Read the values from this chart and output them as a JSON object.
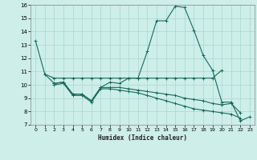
{
  "xlabel": "Humidex (Indice chaleur)",
  "xlim": [
    -0.5,
    23.5
  ],
  "ylim": [
    7,
    16
  ],
  "yticks": [
    7,
    8,
    9,
    10,
    11,
    12,
    13,
    14,
    15,
    16
  ],
  "xticks": [
    0,
    1,
    2,
    3,
    4,
    5,
    6,
    7,
    8,
    9,
    10,
    11,
    12,
    13,
    14,
    15,
    16,
    17,
    18,
    19,
    20,
    21,
    22,
    23
  ],
  "bg_color": "#cdeee9",
  "grid_color": "#a8d8cc",
  "line_color": "#1a6b5a",
  "lines": [
    [
      13.3,
      10.8,
      10.1,
      10.2,
      9.3,
      9.3,
      8.8,
      9.8,
      10.2,
      10.1,
      10.5,
      10.5,
      12.5,
      14.8,
      14.8,
      15.9,
      15.8,
      14.1,
      12.2,
      11.1,
      8.7,
      8.7,
      7.3,
      7.6
    ],
    [
      null,
      10.8,
      10.5,
      10.5,
      10.5,
      10.5,
      10.5,
      10.5,
      10.5,
      10.5,
      10.5,
      10.5,
      10.5,
      10.5,
      10.5,
      10.5,
      10.5,
      10.5,
      10.5,
      10.5,
      11.1,
      null,
      null,
      null
    ],
    [
      null,
      null,
      10.1,
      10.2,
      9.3,
      9.3,
      8.8,
      9.8,
      9.8,
      9.8,
      9.7,
      9.6,
      9.5,
      9.4,
      9.3,
      9.2,
      9.0,
      8.9,
      8.8,
      8.6,
      8.5,
      8.6,
      7.9,
      null
    ],
    [
      null,
      null,
      10.0,
      10.1,
      9.2,
      9.2,
      8.7,
      9.7,
      9.7,
      9.6,
      9.5,
      9.4,
      9.2,
      9.0,
      8.8,
      8.6,
      8.4,
      8.2,
      8.1,
      8.0,
      7.9,
      7.8,
      7.5,
      null
    ]
  ]
}
